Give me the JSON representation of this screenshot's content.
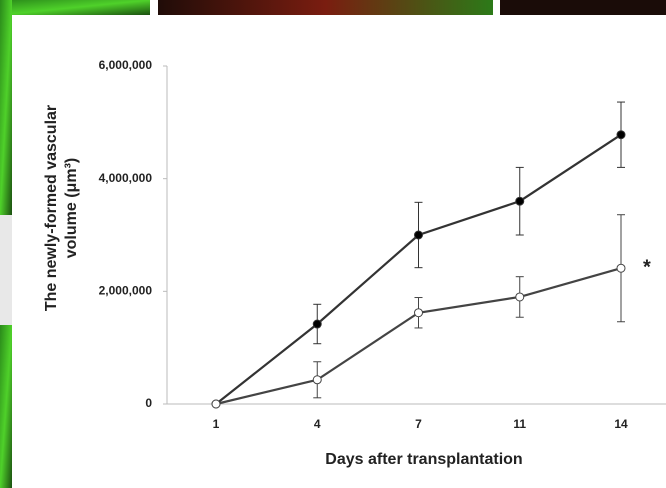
{
  "chart_data": {
    "type": "line",
    "x_label": "Days after transplantation",
    "y_label": [
      "The newly-formed vascular",
      "volume (μm³)"
    ],
    "categories": [
      "1",
      "4",
      "7",
      "11",
      "14"
    ],
    "series": [
      {
        "color": "#333333",
        "marker_fill": "#000000",
        "values": [
          0,
          1420000,
          3000000,
          3600000,
          4780000
        ],
        "errors": [
          0,
          350000,
          580000,
          600000,
          580000
        ]
      },
      {
        "color": "#444444",
        "marker_fill": "#ffffff",
        "values": [
          0,
          430000,
          1620000,
          1900000,
          2410000
        ],
        "errors": [
          0,
          320000,
          270000,
          360000,
          950000
        ]
      }
    ],
    "annotation": "*",
    "ylim": [
      0,
      6000000
    ],
    "yticks": [
      0,
      {
        "value": 2000000,
        "label": "2,000,000"
      },
      {
        "value": 4000000,
        "label": "4,000,000"
      },
      {
        "value": 6000000,
        "label": "6,000,000"
      }
    ]
  }
}
